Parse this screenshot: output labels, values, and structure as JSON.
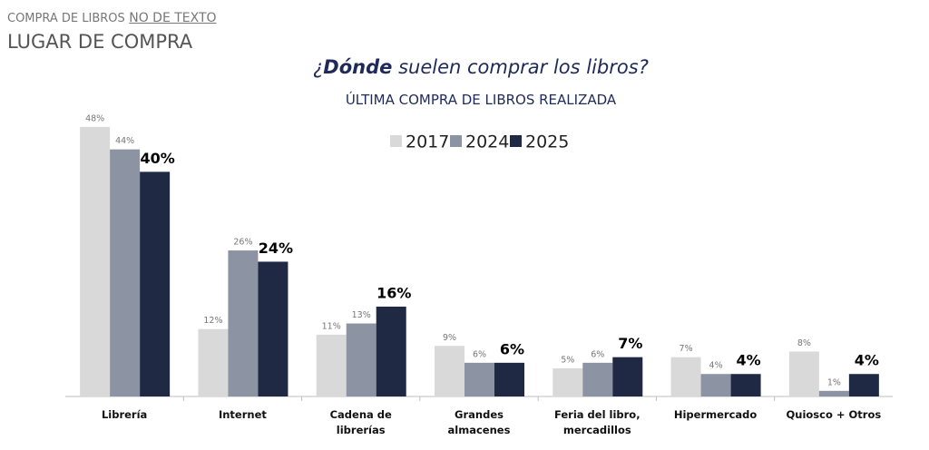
{
  "header": {
    "kicker": "COMPRA DE LIBROS",
    "kicker_link": "NO DE TEXTO",
    "title": "LUGAR DE COMPRA"
  },
  "chart_data": {
    "type": "bar",
    "title_parts": [
      "¿",
      "Dónde",
      " suelen comprar los libros?"
    ],
    "subtitle": "ÚLTIMA COMPRA DE LIBROS REALIZADA",
    "categories": [
      "Librería",
      "Internet",
      "Cadena de librerías",
      "Grandes almacenes",
      "Feria del libro, mercadillos",
      "Hipermercado",
      "Quiosco + Otros"
    ],
    "series": [
      {
        "name": "2017",
        "color": "#d9d9d9",
        "values": [
          48,
          12,
          11,
          9,
          5,
          7,
          8
        ],
        "value_labels": [
          "48%",
          "12%",
          "11%",
          "9%",
          "5%",
          "7%",
          "8%"
        ]
      },
      {
        "name": "2024",
        "color": "#8c93a2",
        "values": [
          44,
          26,
          13,
          6,
          6,
          4,
          1
        ],
        "value_labels": [
          "44%",
          "26%",
          "13%",
          "6%",
          "6%",
          "4%",
          "1%"
        ]
      },
      {
        "name": "2025",
        "color": "#1f2944",
        "values": [
          40,
          24,
          16,
          6,
          7,
          4,
          4
        ],
        "value_labels": [
          "40%",
          "24%",
          "16%",
          "6%",
          "7%",
          "4%",
          "4%"
        ]
      }
    ],
    "legend": "top"
  }
}
